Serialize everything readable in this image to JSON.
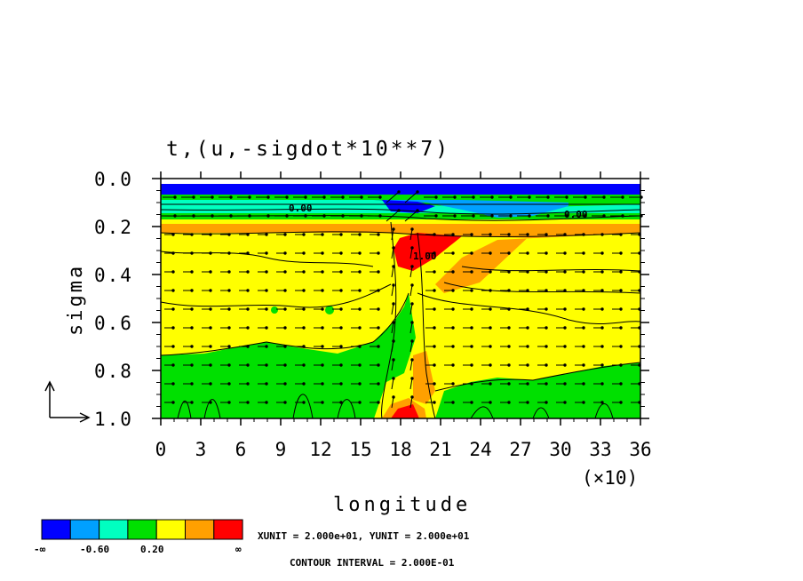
{
  "chart_data": {
    "type": "heatmap",
    "title": "t,(u,-sigdot*10**7)",
    "xlabel": "longitude",
    "ylabel": "sigma",
    "x_multiplier": "(×10)",
    "x_ticks": [
      "0",
      "3",
      "6",
      "9",
      "12",
      "15",
      "18",
      "21",
      "24",
      "27",
      "30",
      "33",
      "36"
    ],
    "y_ticks": [
      "0.0",
      "0.2",
      "0.4",
      "0.6",
      "0.8",
      "1.0"
    ],
    "xlim": [
      0,
      36
    ],
    "ylim": [
      0.0,
      1.0
    ],
    "y_inverted": true,
    "colorbar": {
      "colors": [
        "#0000ff",
        "#00a0ff",
        "#00ffc0",
        "#00e000",
        "#ffff00",
        "#ffa000",
        "#ff0000"
      ],
      "labels": [
        "-∞",
        "-0.60",
        "0.20",
        "∞"
      ]
    },
    "units_note": "XUNIT = 2.000e+01, YUNIT = 2.000e+01",
    "contour_note": "CONTOUR INTERVAL = 2.000E-01",
    "contour_labels": [
      "0.00",
      "1.00",
      "0.00"
    ],
    "regions": [
      {
        "band": [
          0.0,
          0.02
        ],
        "color": "#0000ff",
        "x": [
          0,
          36
        ]
      },
      {
        "band": [
          0.02,
          0.08
        ],
        "color": "#00e000",
        "x": [
          0,
          36
        ]
      },
      {
        "band": [
          0.08,
          0.14
        ],
        "color": "#00ffc0",
        "x": [
          16,
          30
        ]
      },
      {
        "band": [
          0.14,
          0.22
        ],
        "color": "#00e000",
        "x": [
          0,
          36
        ]
      },
      {
        "band": [
          0.22,
          0.27
        ],
        "color": "#ffa000",
        "x": [
          0,
          36
        ]
      },
      {
        "band": [
          0.27,
          0.75
        ],
        "color": "#ffff00",
        "x": [
          0,
          36
        ]
      },
      {
        "band": [
          0.75,
          1.0
        ],
        "color": "#00e000",
        "x": [
          0,
          36
        ]
      }
    ]
  }
}
